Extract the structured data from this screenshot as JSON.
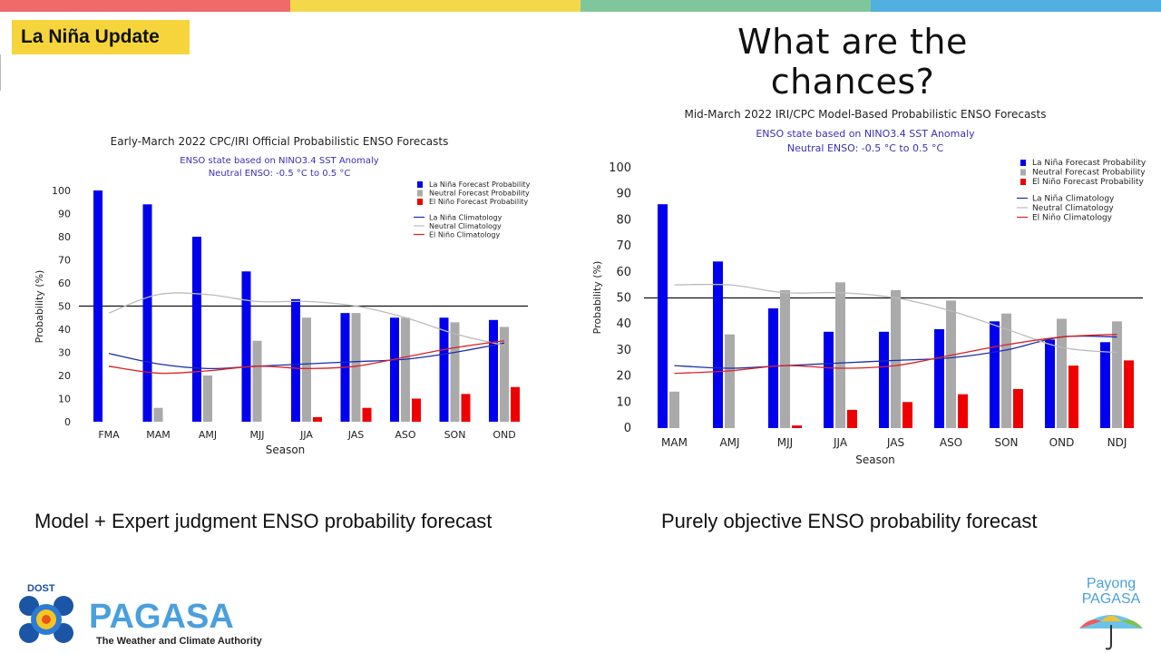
{
  "slide": {
    "badge": "La Niña Update",
    "heading": "What are the chances?",
    "caption_left": "Model + Expert judgment ENSO probability forecast",
    "caption_right": "Purely objective ENSO probability forecast",
    "top_bar_colors": [
      "#f0696b",
      "#f4d84a",
      "#7fc79a",
      "#52b0e0"
    ]
  },
  "logos": {
    "pagasa": {
      "prefix": "DOST",
      "name": "PAGASA",
      "tagline": "The Weather and Climate Authority"
    },
    "payong": {
      "line1": "Payong",
      "line2": "PAGASA"
    }
  },
  "chart_data": [
    {
      "type": "bar",
      "title": "Early-March 2022 CPC/IRI Official Probabilistic ENSO Forecasts",
      "subtitle": [
        "ENSO state based on NINO3.4 SST Anomaly",
        "Neutral ENSO: -0.5 °C to 0.5 °C"
      ],
      "xlabel": "Season",
      "ylabel": "Probability (%)",
      "ylim": [
        0,
        100
      ],
      "yticks": [
        0,
        10,
        20,
        30,
        40,
        50,
        60,
        70,
        80,
        90,
        100
      ],
      "reference_line": 50,
      "categories": [
        "FMA",
        "MAM",
        "AMJ",
        "MJJ",
        "JJA",
        "JAS",
        "ASO",
        "SON",
        "OND"
      ],
      "series": [
        {
          "name": "La Niña Forecast Probability",
          "color": "#0000ee",
          "values": [
            100,
            94,
            80,
            65,
            53,
            47,
            45,
            45,
            44
          ]
        },
        {
          "name": "Neutral Forecast Probability",
          "color": "#aaaaaa",
          "values": [
            0,
            6,
            20,
            35,
            45,
            47,
            45,
            43,
            41
          ]
        },
        {
          "name": "El Niño Forecast Probability",
          "color": "#ee0000",
          "values": [
            0,
            0,
            0,
            0,
            2,
            6,
            10,
            12,
            15
          ]
        }
      ],
      "lines": [
        {
          "name": "La Niña Climatology",
          "color": "#1a2faa",
          "values": [
            29.5,
            25,
            23,
            24,
            25,
            26,
            27,
            30,
            34
          ]
        },
        {
          "name": "Neutral Climatology",
          "color": "#bbbbbb",
          "values": [
            47,
            55,
            55,
            52,
            52,
            50,
            45,
            38,
            33
          ]
        },
        {
          "name": "El Niño Climatology",
          "color": "#dd2222",
          "values": [
            24,
            21,
            22,
            24,
            23,
            24,
            28,
            32,
            35
          ]
        }
      ],
      "legend": "top-right"
    },
    {
      "type": "bar",
      "title": "Mid-March 2022 IRI/CPC Model-Based Probabilistic ENSO Forecasts",
      "subtitle": [
        "ENSO state based on NINO3.4 SST Anomaly",
        "Neutral ENSO: -0.5 °C to 0.5 °C"
      ],
      "xlabel": "Season",
      "ylabel": "Probability (%)",
      "ylim": [
        0,
        100
      ],
      "yticks": [
        0,
        10,
        20,
        30,
        40,
        50,
        60,
        70,
        80,
        90,
        100
      ],
      "reference_line": 50,
      "categories": [
        "MAM",
        "AMJ",
        "MJJ",
        "JJA",
        "JAS",
        "ASO",
        "SON",
        "OND",
        "NDJ"
      ],
      "series": [
        {
          "name": "La Niña Forecast Probability",
          "color": "#0000ee",
          "values": [
            86,
            64,
            46,
            37,
            37,
            38,
            41,
            34,
            33
          ]
        },
        {
          "name": "Neutral Forecast Probability",
          "color": "#aaaaaa",
          "values": [
            14,
            36,
            53,
            56,
            53,
            49,
            44,
            42,
            41
          ]
        },
        {
          "name": "El Niño Forecast Probability",
          "color": "#ee0000",
          "values": [
            0,
            0,
            1,
            7,
            10,
            13,
            15,
            24,
            26
          ]
        }
      ],
      "lines": [
        {
          "name": "La Niña Climatology",
          "color": "#1a2faa",
          "values": [
            24,
            23,
            24,
            25,
            26,
            27,
            30,
            35,
            35
          ]
        },
        {
          "name": "Neutral Climatology",
          "color": "#bbbbbb",
          "values": [
            55,
            55,
            52,
            52,
            50,
            45,
            38,
            31,
            29
          ]
        },
        {
          "name": "El Niño Climatology",
          "color": "#dd2222",
          "values": [
            21,
            22,
            24,
            23,
            24,
            28,
            32,
            35,
            36
          ]
        }
      ],
      "legend": "top-right"
    }
  ]
}
